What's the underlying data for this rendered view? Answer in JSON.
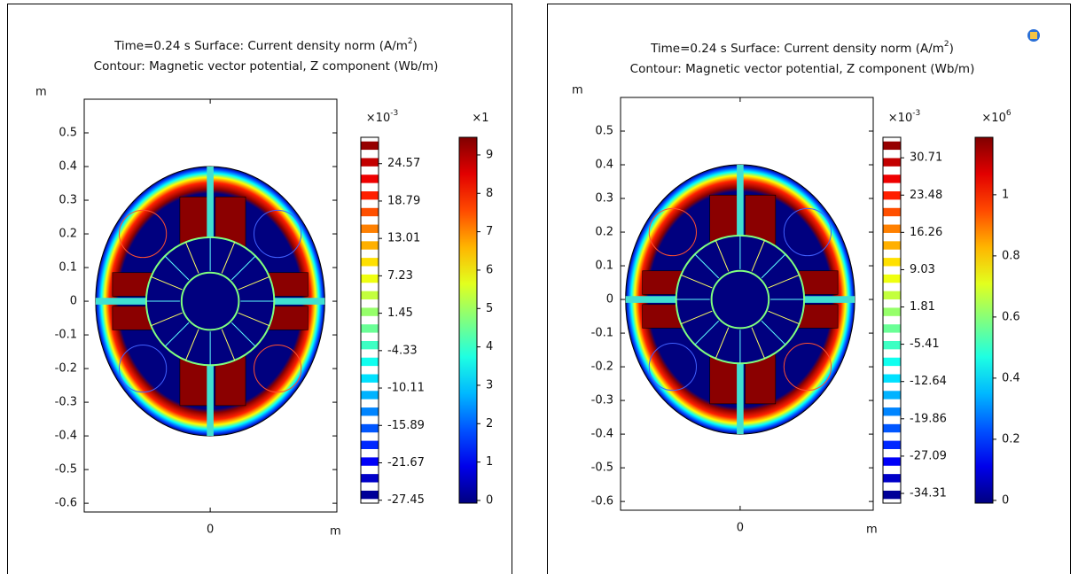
{
  "chart_data": [
    {
      "type": "surface",
      "title": {
        "pre": "Time=0.24 s   Surface: Current density norm (A/m",
        "sup": "2",
        "post": ")"
      },
      "subtitle": "Contour: Magnetic vector potential, Z component (Wb/m)",
      "y_unit": "m",
      "x_unit": "m",
      "xlim": [
        -0.374,
        0.376
      ],
      "xticks": [
        0
      ],
      "ylim": [
        -0.626,
        0.6
      ],
      "yticks": [
        0.5,
        0.4,
        0.3,
        0.2,
        0.1,
        0,
        -0.1,
        -0.2,
        -0.3,
        -0.4,
        -0.5,
        -0.6
      ],
      "contour_legend": {
        "multiplier": {
          "base": "×10",
          "exp": "-3"
        },
        "lim": [
          -27.9,
          28.64
        ],
        "ticks": [
          24.57,
          18.79,
          13.01,
          7.23,
          1.45,
          -4.33,
          -10.11,
          -15.89,
          -21.67,
          -27.45
        ]
      },
      "surface_legend": {
        "multiplier": {
          "base": "×1"
        },
        "lim": [
          -0.07,
          9.46
        ],
        "ticks": [
          9,
          8,
          7,
          6,
          5,
          4,
          3,
          2,
          1,
          0
        ]
      }
    },
    {
      "type": "surface",
      "title": {
        "pre": "Time=0.24 s   Surface: Current density norm (A/m",
        "sup": "2",
        "post": ")"
      },
      "subtitle": "Contour: Magnetic vector potential, Z component (Wb/m)",
      "y_unit": "m",
      "x_unit": "m",
      "xlim": [
        -0.355,
        0.395
      ],
      "xticks": [
        0
      ],
      "ylim": [
        -0.626,
        0.6
      ],
      "yticks": [
        0.5,
        0.4,
        0.3,
        0.2,
        0.1,
        0,
        -0.1,
        -0.2,
        -0.3,
        -0.4,
        -0.5,
        -0.6
      ],
      "contour_legend": {
        "multiplier": {
          "base": "×10",
          "exp": "-3"
        },
        "lim": [
          -36.2,
          34.68
        ],
        "ticks": [
          30.71,
          23.48,
          16.26,
          9.03,
          1.81,
          -5.41,
          -12.64,
          -19.86,
          -27.09,
          -34.31
        ]
      },
      "surface_legend": {
        "multiplier": {
          "base": "×10",
          "exp": "6"
        },
        "lim": [
          -0.009,
          1.188
        ],
        "ticks": [
          1,
          0.8,
          0.6,
          0.4,
          0.2,
          0
        ]
      }
    }
  ]
}
